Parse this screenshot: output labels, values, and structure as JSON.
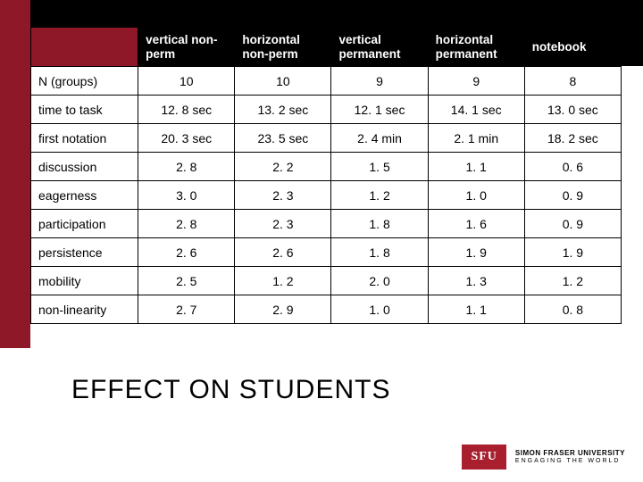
{
  "table": {
    "columns": [
      "vertical non-perm",
      "horizontal non-perm",
      "vertical permanent",
      "horizontal permanent",
      "notebook"
    ],
    "rows": [
      {
        "label": "N (groups)",
        "values": [
          "10",
          "10",
          "9",
          "9",
          "8"
        ]
      },
      {
        "label": "time to task",
        "values": [
          "12. 8 sec",
          "13. 2 sec",
          "12. 1 sec",
          "14. 1 sec",
          "13. 0 sec"
        ]
      },
      {
        "label": "first notation",
        "values": [
          "20. 3 sec",
          "23. 5 sec",
          "2. 4 min",
          "2. 1 min",
          "18. 2 sec"
        ]
      },
      {
        "label": "discussion",
        "values": [
          "2. 8",
          "2. 2",
          "1. 5",
          "1. 1",
          "0. 6"
        ]
      },
      {
        "label": "eagerness",
        "values": [
          "3. 0",
          "2. 3",
          "1. 2",
          "1. 0",
          "0. 9"
        ]
      },
      {
        "label": "participation",
        "values": [
          "2. 8",
          "2. 3",
          "1. 8",
          "1. 6",
          "0. 9"
        ]
      },
      {
        "label": "persistence",
        "values": [
          "2. 6",
          "2. 6",
          "1. 8",
          "1. 9",
          "1. 9"
        ]
      },
      {
        "label": "mobility",
        "values": [
          "2. 5",
          "1. 2",
          "2. 0",
          "1. 3",
          "1. 2"
        ]
      },
      {
        "label": "non-linearity",
        "values": [
          "2. 7",
          "2. 9",
          "1. 0",
          "1. 1",
          "0. 8"
        ]
      }
    ],
    "header_bg": "#000000",
    "header_fg": "#ffffff",
    "accent_color": "#8e1728",
    "border_color": "#000000"
  },
  "section_title": "EFFECT ON STUDENTS",
  "footer": {
    "logo_text": "SFU",
    "line1": "SIMON FRASER UNIVERSITY",
    "line2": "ENGAGING THE WORLD"
  }
}
